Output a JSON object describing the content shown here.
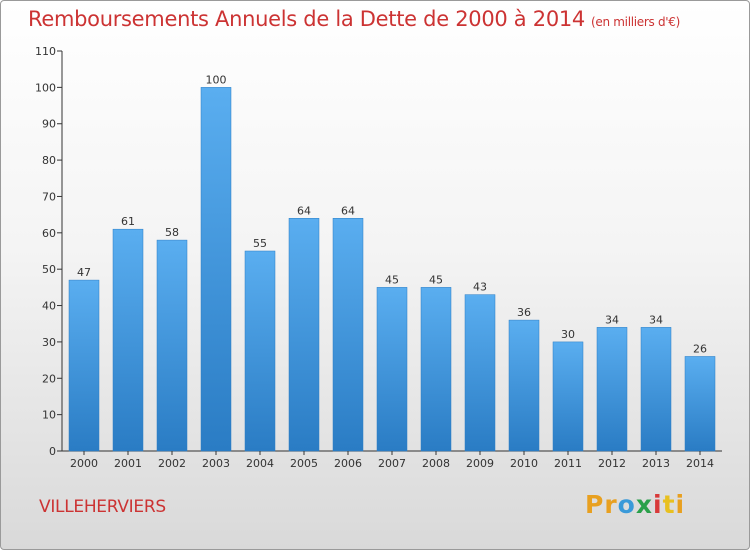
{
  "header": {
    "title": "Remboursements Annuels de la Dette de 2000 à 2014",
    "unit": "(en milliers d'€)"
  },
  "footer": {
    "commune": "VILLEHERVIERS",
    "logo": {
      "letters": [
        "P",
        "r",
        "o",
        "x",
        "i",
        "t",
        "i"
      ],
      "colors": [
        "#e8a020",
        "#e8a020",
        "#3a9ad9",
        "#2aa04a",
        "#d83a3a",
        "#e8c020",
        "#e8a020"
      ]
    }
  },
  "colors": {
    "bar": "#3f97dd",
    "bar_dark": "#2a7cc4",
    "text": "#cc3333",
    "axis": "#333333"
  },
  "chart_data": {
    "type": "bar",
    "title": "Remboursements Annuels de la Dette de 2000 à 2014",
    "categories": [
      "2000",
      "2001",
      "2002",
      "2003",
      "2004",
      "2005",
      "2006",
      "2007",
      "2008",
      "2009",
      "2010",
      "2011",
      "2012",
      "2013",
      "2014"
    ],
    "values": [
      47,
      61,
      58,
      100,
      55,
      64,
      64,
      45,
      45,
      43,
      36,
      30,
      34,
      34,
      26
    ],
    "ylim": [
      0,
      110
    ],
    "yticks": [
      0,
      10,
      20,
      30,
      40,
      50,
      60,
      70,
      80,
      90,
      100,
      110
    ],
    "grid": false
  }
}
